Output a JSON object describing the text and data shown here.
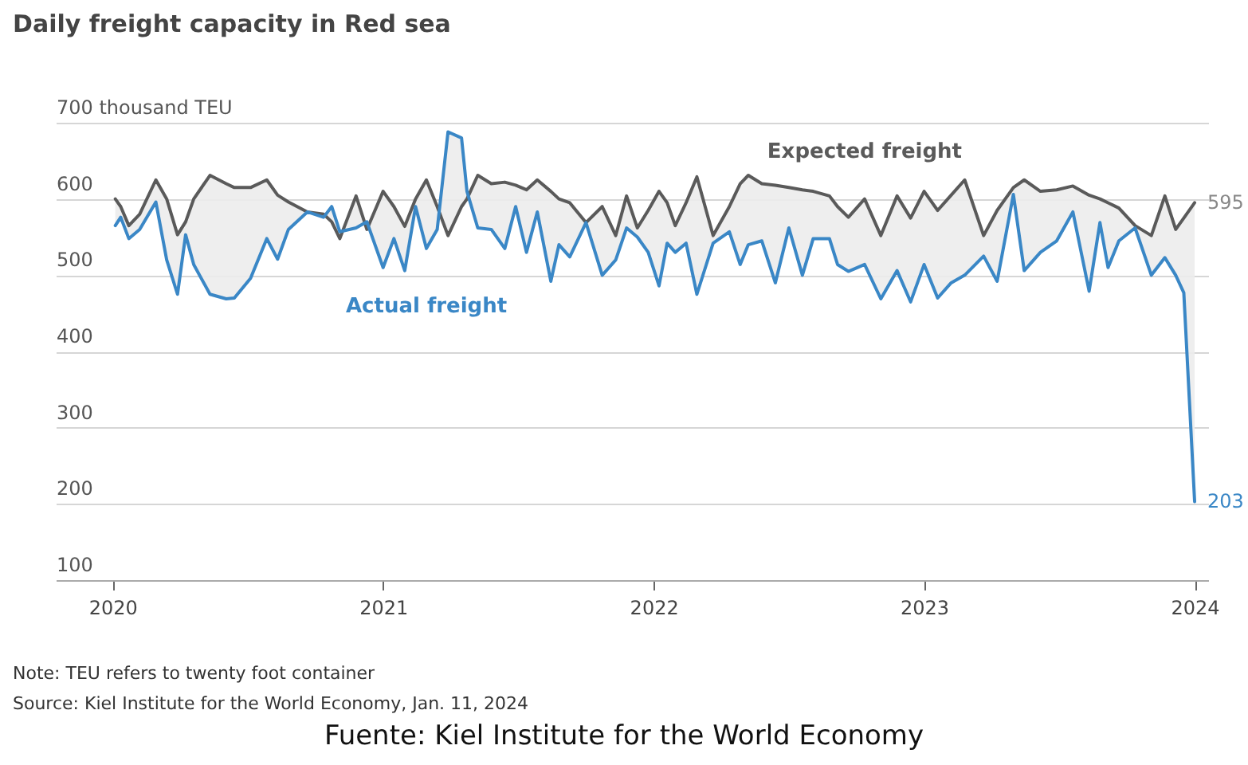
{
  "chart_data": {
    "type": "line",
    "title": "Daily freight capacity in Red sea",
    "x": [
      2020.01,
      2020.03,
      2020.06,
      2020.1,
      2020.16,
      2020.2,
      2020.24,
      2020.27,
      2020.3,
      2020.36,
      2020.42,
      2020.45,
      2020.51,
      2020.57,
      2020.61,
      2020.65,
      2020.72,
      2020.78,
      2020.81,
      2020.84,
      2020.9,
      2020.94,
      2021.0,
      2021.04,
      2021.08,
      2021.12,
      2021.16,
      2021.2,
      2021.24,
      2021.29,
      2021.31,
      2021.35,
      2021.4,
      2021.45,
      2021.49,
      2021.53,
      2021.57,
      2021.62,
      2021.65,
      2021.69,
      2021.75,
      2021.81,
      2021.86,
      2021.9,
      2021.94,
      2021.98,
      2022.02,
      2022.05,
      2022.08,
      2022.12,
      2022.16,
      2022.22,
      2022.28,
      2022.32,
      2022.35,
      2022.4,
      2022.45,
      2022.5,
      2022.55,
      2022.59,
      2022.65,
      2022.68,
      2022.72,
      2022.78,
      2022.84,
      2022.9,
      2022.95,
      2023.0,
      2023.05,
      2023.1,
      2023.15,
      2023.22,
      2023.27,
      2023.33,
      2023.37,
      2023.43,
      2023.49,
      2023.55,
      2023.61,
      2023.65,
      2023.68,
      2023.72,
      2023.78,
      2023.84,
      2023.89,
      2023.93,
      2023.96,
      2024.0
    ],
    "series": [
      {
        "name": "Expected freight",
        "color": "#5a5a5a",
        "values": [
          600,
          590,
          565,
          580,
          625,
          600,
          553,
          570,
          600,
          631,
          620,
          615,
          615,
          625,
          605,
          596,
          583,
          580,
          570,
          548,
          604,
          560,
          610,
          590,
          564,
          600,
          625,
          590,
          552,
          590,
          600,
          631,
          620,
          622,
          618,
          612,
          625,
          610,
          600,
          595,
          569,
          590,
          552,
          604,
          562,
          585,
          610,
          595,
          565,
          595,
          629,
          552,
          590,
          620,
          631,
          620,
          618,
          615,
          612,
          610,
          604,
          590,
          576,
          600,
          552,
          604,
          575,
          610,
          585,
          605,
          625,
          552,
          585,
          615,
          625,
          610,
          612,
          617,
          605,
          600,
          595,
          588,
          565,
          552,
          604,
          560,
          575,
          595
        ],
        "lower": [
          565,
          576,
          548,
          560,
          596,
          520,
          475,
          553,
          514,
          475,
          469,
          470,
          496,
          548,
          521,
          560,
          583,
          576,
          590,
          557,
          562,
          570,
          510,
          548,
          506,
          590,
          535,
          560,
          688,
          680,
          610,
          562,
          560,
          535,
          590,
          530,
          583,
          492,
          540,
          524,
          569,
          500,
          520,
          562,
          550,
          530,
          486,
          542,
          530,
          542,
          475,
          542,
          557,
          514,
          540,
          545,
          490,
          562,
          500,
          548,
          548,
          514,
          505,
          514,
          469,
          506,
          465,
          514,
          470,
          490,
          500,
          525,
          492,
          606,
          506,
          530,
          545,
          583,
          479,
          569,
          510,
          545,
          562,
          500,
          523,
          500,
          477,
          203
        ],
        "upper": [
          600,
          590,
          565,
          580,
          625,
          600,
          553,
          570,
          600,
          631,
          620,
          615,
          615,
          625,
          605,
          596,
          583,
          580,
          570,
          548,
          604,
          560,
          610,
          590,
          564,
          600,
          625,
          590,
          552,
          590,
          600,
          631,
          620,
          622,
          618,
          612,
          625,
          610,
          600,
          595,
          569,
          590,
          552,
          604,
          562,
          585,
          610,
          595,
          565,
          595,
          629,
          552,
          590,
          620,
          631,
          620,
          618,
          615,
          612,
          610,
          604,
          590,
          576,
          600,
          552,
          604,
          575,
          610,
          585,
          605,
          625,
          552,
          585,
          615,
          625,
          610,
          612,
          617,
          605,
          600,
          595,
          588,
          565,
          552,
          604,
          560,
          575,
          595
        ]
      },
      {
        "name": "Actual freight",
        "color": "#3a87c6",
        "values": [
          565,
          576,
          548,
          560,
          596,
          520,
          475,
          553,
          514,
          475,
          469,
          470,
          496,
          548,
          521,
          560,
          583,
          576,
          590,
          557,
          562,
          570,
          510,
          548,
          506,
          590,
          535,
          560,
          688,
          680,
          610,
          562,
          560,
          535,
          590,
          530,
          583,
          492,
          540,
          524,
          569,
          500,
          520,
          562,
          550,
          530,
          486,
          542,
          530,
          542,
          475,
          542,
          557,
          514,
          540,
          545,
          490,
          562,
          500,
          548,
          548,
          514,
          505,
          514,
          469,
          506,
          465,
          514,
          470,
          490,
          500,
          525,
          492,
          606,
          506,
          530,
          545,
          583,
          479,
          569,
          510,
          545,
          562,
          500,
          523,
          500,
          477,
          203
        ]
      }
    ],
    "xlim": [
      2019.79,
      2024.05
    ],
    "xticks": [
      2020,
      2021,
      2022,
      2023,
      2024
    ],
    "ylim": [
      100,
      700
    ],
    "yticks": [
      100,
      200,
      300,
      400,
      500,
      600,
      {
        "value": 700,
        "label": "700 thousand TEU"
      }
    ],
    "grid": "y",
    "legend": false,
    "annotations": [
      {
        "text": "595",
        "x": 2024,
        "y": 595
      },
      {
        "text": "203",
        "x": 2024,
        "y": 203
      },
      "Note: TEU refers to twenty foot container",
      "Source: Kiel Institute for the World Economy, Jan. 11, 2024",
      "Fuente: Kiel Institute for the World Economy"
    ]
  }
}
